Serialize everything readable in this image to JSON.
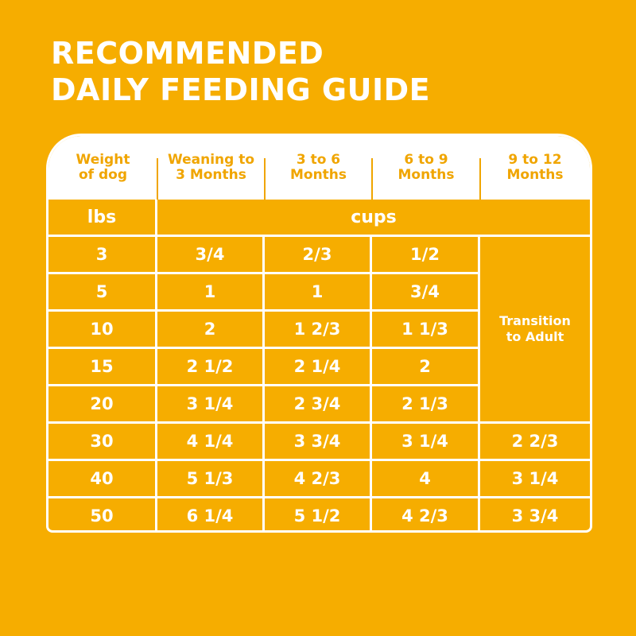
{
  "title": {
    "line1": "RECOMMENDED",
    "line2": "DAILY FEEDING GUIDE"
  },
  "headers": [
    "Weight\nof dog",
    "Weaning to\n3 Months",
    "3 to 6\nMonths",
    "6 to 9\nMonths",
    "9 to 12\nMonths"
  ],
  "units": {
    "weight": "lbs",
    "amount": "cups"
  },
  "transition": "Transition\nto Adult",
  "rows": [
    [
      "3",
      "3/4",
      "2/3",
      "1/2",
      null
    ],
    [
      "5",
      "1",
      "1",
      "3/4",
      null
    ],
    [
      "10",
      "2",
      "1 2/3",
      "1 1/3",
      null
    ],
    [
      "15",
      "2 1/2",
      "2 1/4",
      "2",
      null
    ],
    [
      "20",
      "3 1/4",
      "2 3/4",
      "2 1/3",
      null
    ],
    [
      "30",
      "4 1/4",
      "3 3/4",
      "3 1/4",
      "2 2/3"
    ],
    [
      "40",
      "5 1/3",
      "4 2/3",
      "4",
      "3 1/4"
    ],
    [
      "50",
      "6 1/4",
      "5 1/2",
      "4 2/3",
      "3 3/4"
    ]
  ],
  "colors": {
    "background": "#F6AD00",
    "header_text": "#F0A500",
    "lines": "#FFFFFF"
  }
}
